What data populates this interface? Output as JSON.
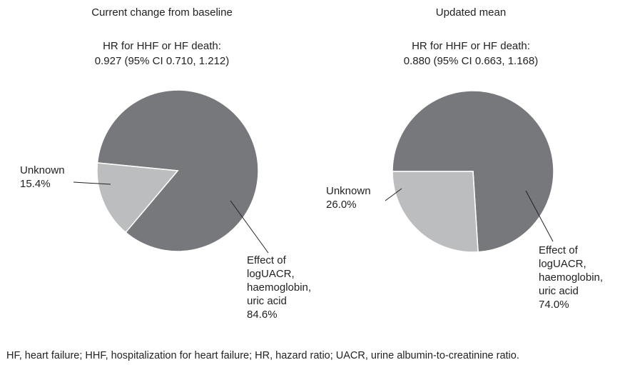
{
  "chart_data": [
    {
      "type": "pie",
      "title": "Current change from baseline",
      "subtitle": [
        "HR for HHF or HF death:",
        "0.927 (95% CI 0.710, 1.212)"
      ],
      "categories": [
        "Effect of\nlogUACR,\nhaemoglobin,\nuric acid",
        "Unknown"
      ],
      "values": [
        84.6,
        15.4
      ],
      "value_labels": [
        "84.6%",
        "15.4%"
      ],
      "colors": [
        "#77787b",
        "#bcbdbf"
      ]
    },
    {
      "type": "pie",
      "title": "Updated mean",
      "subtitle": [
        "HR for HHF or HF death:",
        "0.880 (95% CI 0.663, 1.168)"
      ],
      "categories": [
        "Effect of\nlogUACR,\nhaemoglobin,\nuric acid",
        "Unknown"
      ],
      "values": [
        74.0,
        26.0
      ],
      "value_labels": [
        "74.0%",
        "26.0%"
      ],
      "colors": [
        "#77787b",
        "#bcbdbf"
      ]
    }
  ],
  "footnote": "HF, heart failure; HHF, hospitalization for heart failure; HR, hazard ratio; UACR, urine albumin-to-creatinine ratio."
}
